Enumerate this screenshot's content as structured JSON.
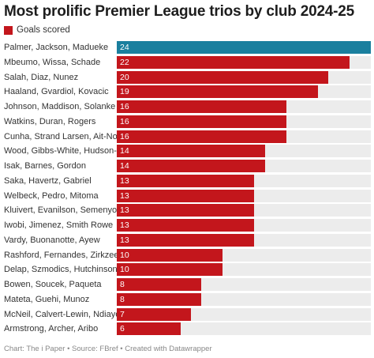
{
  "chart_data": {
    "type": "bar",
    "title": "Most prolific Premier League trios by club 2024-25",
    "legend": [
      "Goals scored"
    ],
    "categories": [
      "Palmer, Jackson, Madueke",
      "Mbeumo, Wissa, Schade",
      "Salah, Diaz, Nunez",
      "Haaland, Gvardiol, Kovacic",
      "Johnson, Maddison, Solanke",
      "Watkins, Duran, Rogers",
      "Cunha, Strand Larsen, Ait-Nouri",
      "Wood, Gibbs-White, Hudson-Odoi",
      "Isak, Barnes, Gordon",
      "Saka, Havertz, Gabriel",
      "Welbeck, Pedro, Mitoma",
      "Kluivert, Evanilson, Semenyo",
      "Iwobi, Jimenez, Smith Rowe",
      "Vardy, Buonanotte, Ayew",
      "Rashford, Fernandes, Zirkzee",
      "Delap, Szmodics, Hutchinson",
      "Bowen, Soucek, Paqueta",
      "Mateta, Guehi, Munoz",
      "McNeil, Calvert-Lewin, Ndiaye",
      "Armstrong, Archer, Aribo"
    ],
    "series": [
      {
        "name": "Goals scored",
        "values": [
          24,
          22,
          20,
          19,
          16,
          16,
          16,
          14,
          14,
          13,
          13,
          13,
          13,
          13,
          10,
          10,
          8,
          8,
          7,
          6
        ]
      }
    ],
    "xlim": [
      0,
      24
    ],
    "grid": false,
    "highlight_index": 0
  },
  "colors": {
    "bar": "#c3161c",
    "highlight": "#1a7f9e",
    "track": "#ececec"
  },
  "footer": "Chart: The i Paper • Source: FBref • Created with Datawrapper"
}
